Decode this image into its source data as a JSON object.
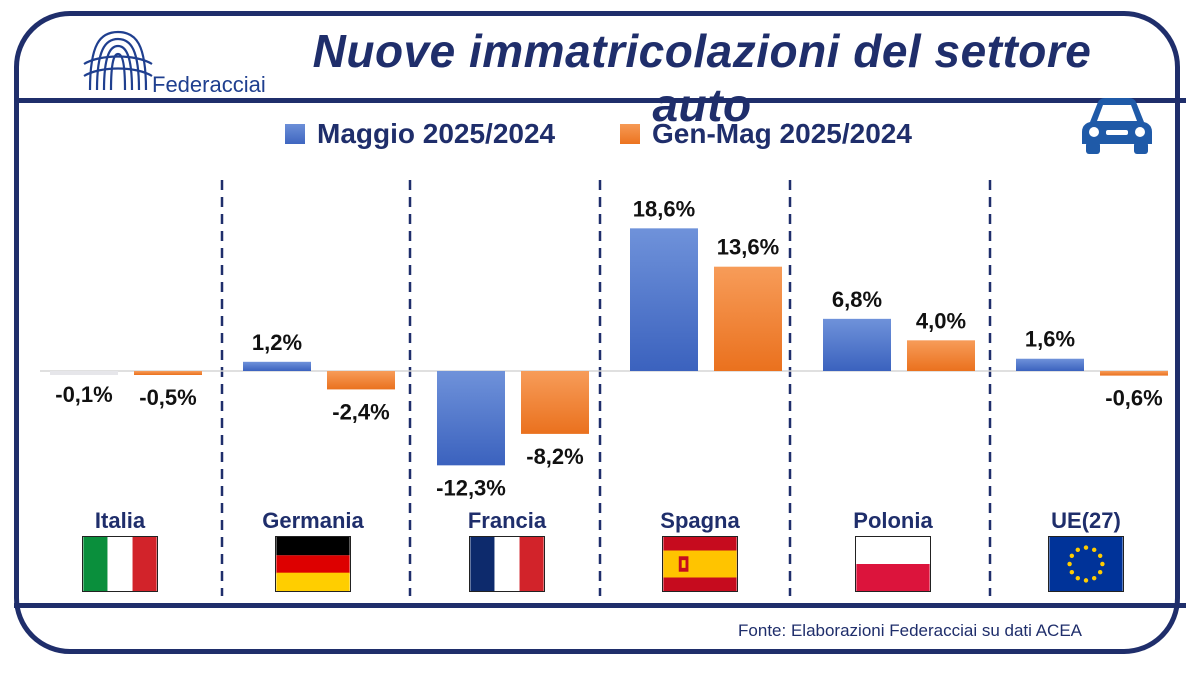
{
  "title": "Nuove immatricolazioni del settore auto",
  "logo": {
    "name": "Federacciai",
    "icon": "federacciai-logo-icon"
  },
  "icons": {
    "car": "car-icon"
  },
  "colors": {
    "navy": "#1f2e6b",
    "blue": "#4a72c9",
    "orange": "#ef7d22"
  },
  "source": "Fonte: Elaborazioni Federacciai su dati ACEA",
  "chart_data": {
    "type": "bar",
    "categories": [
      "Italia",
      "Germania",
      "Francia",
      "Spagna",
      "Polonia",
      "UE(27)"
    ],
    "series": [
      {
        "name": "Maggio 2025/2024",
        "values": [
          -0.1,
          1.2,
          -12.3,
          18.6,
          6.8,
          1.6
        ],
        "labels": [
          "-0,1%",
          "1,2%",
          "-12,3%",
          "18,6%",
          "6,8%",
          "1,6%"
        ],
        "color": "#4a72c9"
      },
      {
        "name": "Gen-Mag 2025/2024",
        "values": [
          -0.5,
          -2.4,
          -8.2,
          13.6,
          4.0,
          -0.6
        ],
        "labels": [
          "-0,5%",
          "-2,4%",
          "-8,2%",
          "13,6%",
          "4,0%",
          "-0,6%"
        ],
        "color": "#ef7d22"
      }
    ],
    "legend": "top",
    "grid": false,
    "flags": [
      "italy-flag-icon",
      "germany-flag-icon",
      "france-flag-icon",
      "spain-flag-icon",
      "poland-flag-icon",
      "eu-flag-icon"
    ]
  }
}
